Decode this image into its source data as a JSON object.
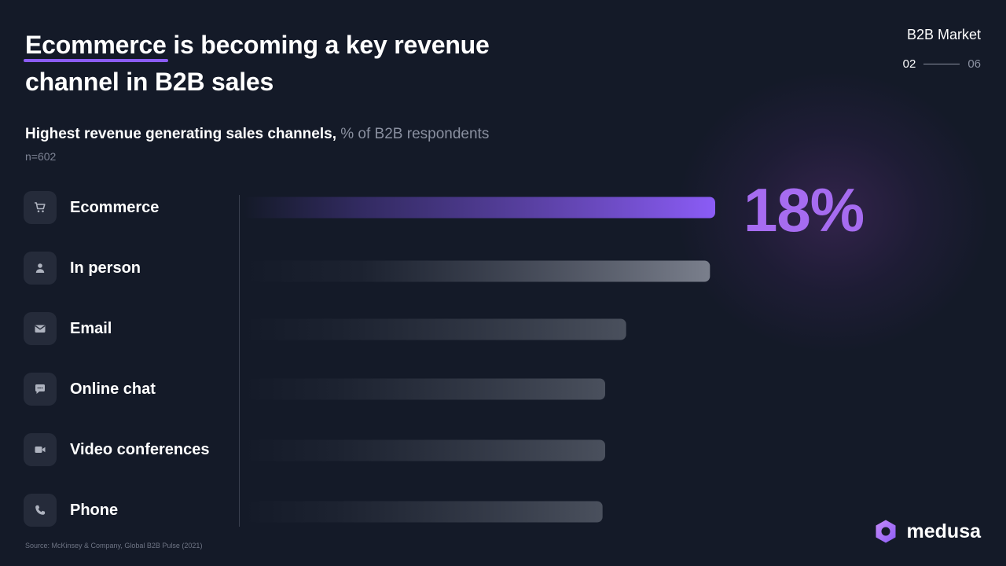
{
  "header": {
    "title_highlight": "Ecommerce",
    "title_rest_line1": " is becoming a key revenue",
    "title_line2": "channel in B2B sales",
    "section": "B2B Market",
    "page_current": "02",
    "page_total": "06"
  },
  "subtitle": {
    "bold": "Highest revenue generating sales channels,",
    "muted": " % of B2B respondents",
    "n": "n=602"
  },
  "chart_data": {
    "type": "bar",
    "orientation": "horizontal",
    "categories": [
      "Ecommerce",
      "In person",
      "Email",
      "Online chat",
      "Video conferences",
      "Phone"
    ],
    "icons": [
      "cart-icon",
      "person-icon",
      "mail-icon",
      "chat-icon",
      "video-icon",
      "phone-icon"
    ],
    "values": [
      18,
      17.8,
      14.6,
      13.8,
      13.8,
      13.7
    ],
    "highlight_index": 0,
    "data_labels": [
      "18%"
    ],
    "xlim": [
      0,
      18
    ],
    "grid": false,
    "colors": {
      "highlight_start": "#3a2f70",
      "highlight_end": "#8b5cf6",
      "bar_start": "#1e2432",
      "bar_end_top": "#7a7f8c",
      "bar_end_low": "#4a505d"
    }
  },
  "big_value": "18%",
  "footer": {
    "source": "Source: McKinsey & Company, Global B2B Pulse (2021)",
    "brand": "medusa"
  },
  "colors": {
    "background": "#141a28",
    "accent": "#8b5cf6",
    "big_value": "#a66cf0"
  }
}
